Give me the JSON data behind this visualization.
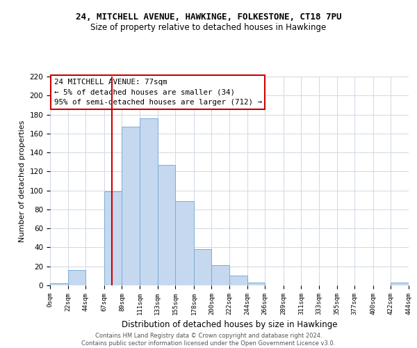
{
  "title": "24, MITCHELL AVENUE, HAWKINGE, FOLKESTONE, CT18 7PU",
  "subtitle": "Size of property relative to detached houses in Hawkinge",
  "xlabel": "Distribution of detached houses by size in Hawkinge",
  "ylabel": "Number of detached properties",
  "bar_color": "#c5d8ef",
  "bar_edge_color": "#7aadd4",
  "background_color": "#ffffff",
  "grid_color": "#d0d8e4",
  "property_line_x": 77,
  "property_line_color": "#cc0000",
  "annotation_line1": "24 MITCHELL AVENUE: 77sqm",
  "annotation_line2": "← 5% of detached houses are smaller (34)",
  "annotation_line3": "95% of semi-detached houses are larger (712) →",
  "annotation_box_color": "#ffffff",
  "annotation_box_edge": "#cc0000",
  "bin_edges": [
    0,
    22,
    44,
    67,
    89,
    111,
    133,
    155,
    178,
    200,
    222,
    244,
    266,
    289,
    311,
    333,
    355,
    377,
    400,
    422,
    444
  ],
  "bin_counts": [
    2,
    16,
    0,
    99,
    167,
    176,
    127,
    89,
    38,
    21,
    10,
    3,
    0,
    0,
    0,
    0,
    0,
    0,
    0,
    3
  ],
  "ylim": [
    0,
    220
  ],
  "yticks": [
    0,
    20,
    40,
    60,
    80,
    100,
    120,
    140,
    160,
    180,
    200,
    220
  ],
  "footer_text": "Contains HM Land Registry data © Crown copyright and database right 2024.\nContains public sector information licensed under the Open Government Licence v3.0.",
  "tick_labels": [
    "0sqm",
    "22sqm",
    "44sqm",
    "67sqm",
    "89sqm",
    "111sqm",
    "133sqm",
    "155sqm",
    "178sqm",
    "200sqm",
    "222sqm",
    "244sqm",
    "266sqm",
    "289sqm",
    "311sqm",
    "333sqm",
    "355sqm",
    "377sqm",
    "400sqm",
    "422sqm",
    "444sqm"
  ]
}
